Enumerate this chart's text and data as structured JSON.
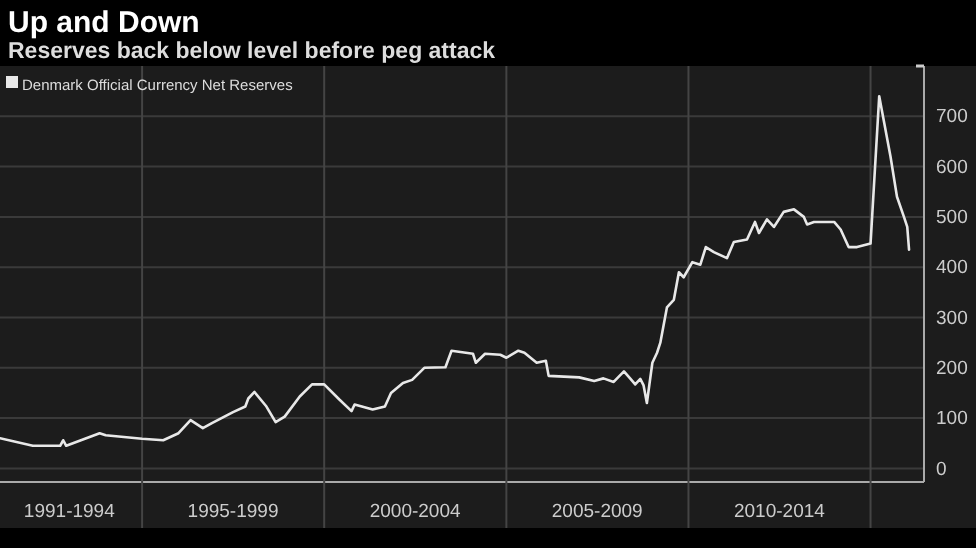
{
  "chart_data": {
    "type": "line",
    "title": "Up and Down",
    "subtitle": "Reserves back below level before peg attack",
    "series": [
      {
        "name": "Denmark Official Currency Net Reserves",
        "color": "#e8e8e8",
        "x": [
          "1991-02-06",
          "1992-01",
          "1992-10",
          "1992-11",
          "1992-12",
          "1993-11",
          "1994-01",
          "1995-01",
          "1995-08",
          "1996-01",
          "1996-05",
          "1996-09",
          "1996-12",
          "1997-07",
          "1997-11",
          "1997-12",
          "1998-02",
          "1998-06",
          "1998-09",
          "1998-12",
          "1999-05",
          "1999-09",
          "2000-01",
          "2000-06",
          "2000-10",
          "2000-11",
          "2001-05",
          "2001-09",
          "2001-11",
          "2002-03",
          "2002-06",
          "2002-10",
          "2003-05",
          "2003-07",
          "2004-02",
          "2004-03",
          "2004-06",
          "2004-11",
          "2005-01",
          "2005-05",
          "2005-07",
          "2005-11",
          "2006-02",
          "2006-03",
          "2007-01",
          "2007-06",
          "2007-09",
          "2007-12-13",
          "2008-03-25",
          "2008-05-30",
          "2008-07-16",
          "2008-09-05",
          "2008-10-08",
          "2008-11-10",
          "2009-01-04",
          "2009-02-20",
          "2009-03-25",
          "2009-05-30",
          "2009-08-07",
          "2009-09-27",
          "2009-11-14",
          "2010-02-09",
          "2010-04-30",
          "2010-06-24",
          "2010-09-13",
          "2011-01-22",
          "2011-04-01",
          "2011-08-11",
          "2011-10-30",
          "2011-12-09",
          "2012-02-27",
          "2012-05-07",
          "2012-08-13",
          "2012-11-24",
          "2013-03-03",
          "2013-04-05",
          "2013-06-13",
          "2014-01-01",
          "2014-03-07",
          "2014-05-26",
          "2014-08-18",
          "2015-01-01",
          "2015-03-29",
          "2015-05-15",
          "2015-07-20",
          "2015-09-23",
          "2015-12-02",
          "2016-01-04",
          "2016-01-22"
        ],
        "values": [
          60,
          45,
          45,
          56,
          45,
          70,
          66,
          59,
          56,
          70,
          96,
          80,
          90,
          112,
          123,
          139,
          152,
          123,
          92,
          103,
          143,
          167,
          167,
          137,
          114,
          127,
          117,
          123,
          150,
          170,
          176,
          200,
          201,
          234,
          228,
          210,
          228,
          226,
          220,
          234,
          230,
          210,
          214,
          184,
          181,
          174,
          179,
          172,
          193,
          178,
          167,
          178,
          165,
          130,
          210,
          230,
          250,
          320,
          335,
          390,
          380,
          410,
          405,
          440,
          430,
          418,
          450,
          455,
          490,
          468,
          495,
          480,
          510,
          515,
          500,
          485,
          490,
          490,
          475,
          440,
          440,
          447,
          740,
          690,
          620,
          540,
          500,
          480,
          435
        ]
      }
    ],
    "xlim": [
      "1991-02-06",
      "2016-06-20"
    ],
    "xticks": [
      {
        "value": "1993-01-01",
        "label": "1991-1994"
      },
      {
        "value": "1995-01-01",
        "label": null
      },
      {
        "value": "1997-07-01",
        "label": "1995-1999"
      },
      {
        "value": "2000-01-01",
        "label": null
      },
      {
        "value": "2002-07-01",
        "label": "2000-2004"
      },
      {
        "value": "2005-01-01",
        "label": null
      },
      {
        "value": "2007-07-01",
        "label": "2005-2009"
      },
      {
        "value": "2010-01-01",
        "label": null
      },
      {
        "value": "2012-07-01",
        "label": "2010-2014"
      },
      {
        "value": "2015-01-01",
        "label": null
      }
    ],
    "ylim": [
      -27,
      800
    ],
    "yticks": [
      0,
      100,
      200,
      300,
      400,
      500,
      600,
      700,
      {
        "value": 800,
        "label": null
      }
    ],
    "grid": true,
    "legend": "top left",
    "marker": "none",
    "line_style": "solid"
  }
}
